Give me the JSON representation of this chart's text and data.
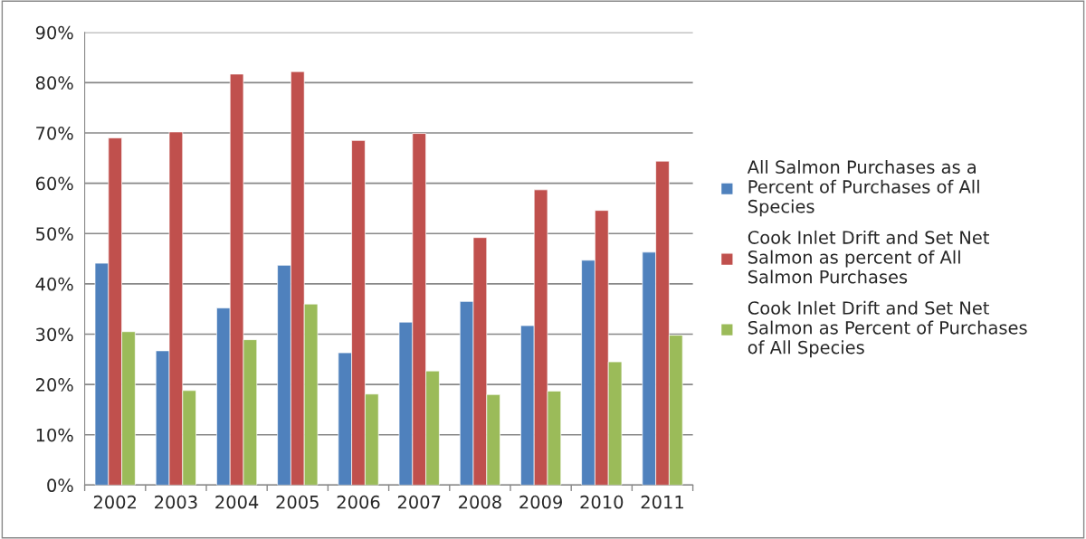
{
  "chart_data": {
    "type": "bar",
    "categories": [
      "2002",
      "2003",
      "2004",
      "2005",
      "2006",
      "2007",
      "2008",
      "2009",
      "2010",
      "2011"
    ],
    "series": [
      {
        "name": "All Salmon Purchases as a Percent of Purchases of All Species",
        "color": "#4f81bd",
        "values": [
          44.1,
          26.7,
          35.2,
          43.7,
          26.3,
          32.4,
          36.5,
          31.7,
          44.7,
          46.3
        ]
      },
      {
        "name": "Cook Inlet Drift and Set Net Salmon as percent of All Salmon Purchases",
        "color": "#c0504d",
        "values": [
          69.0,
          70.2,
          81.7,
          82.2,
          68.5,
          69.9,
          49.2,
          58.7,
          54.6,
          64.4
        ]
      },
      {
        "name": "Cook Inlet Drift and Set Net Salmon as Percent of Purchases of All Species",
        "color": "#9bbb59",
        "values": [
          30.5,
          18.8,
          28.9,
          36.0,
          18.1,
          22.7,
          18.0,
          18.7,
          24.5,
          29.8
        ]
      }
    ],
    "ylim": [
      0,
      90
    ],
    "yticks": [
      {
        "value": 0,
        "label": "0%"
      },
      {
        "value": 10,
        "label": "10%"
      },
      {
        "value": 20,
        "label": "20%"
      },
      {
        "value": 30,
        "label": "30%"
      },
      {
        "value": 40,
        "label": "40%"
      },
      {
        "value": 50,
        "label": "50%"
      },
      {
        "value": 60,
        "label": "60%"
      },
      {
        "value": 70,
        "label": "70%"
      },
      {
        "value": 80,
        "label": "80%"
      },
      {
        "value": 90,
        "label": "90%"
      }
    ],
    "grid": "y",
    "legend": "right"
  }
}
